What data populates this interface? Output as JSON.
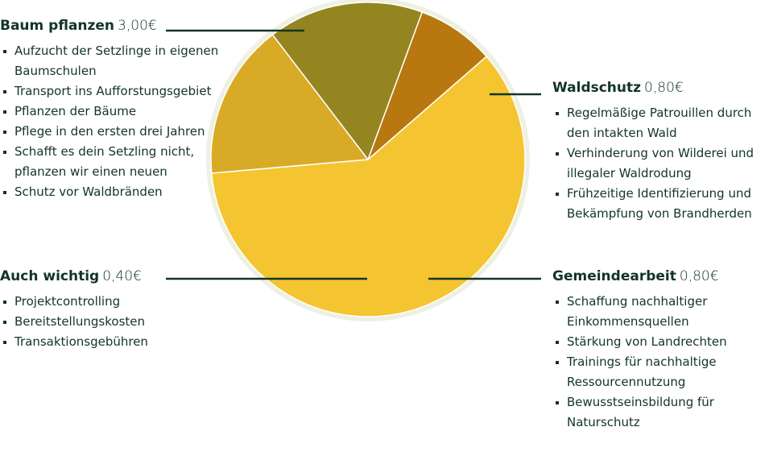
{
  "chart_data": {
    "type": "pie",
    "categories": [
      "Baum pflanzen",
      "Waldschutz",
      "Gemeindearbeit",
      "Auch wichtig"
    ],
    "values": [
      3.0,
      0.8,
      0.8,
      0.4
    ],
    "value_labels": [
      "3,00€",
      "0,80€",
      "0,80€",
      "0,40€"
    ],
    "colors": [
      "#f4c531",
      "#d9aa26",
      "#948521",
      "#b8780f"
    ],
    "bullets": [
      [
        "Aufzucht der Setzlinge in eigenen Baumschulen",
        "Transport ins Aufforstungsgebiet",
        "Pflanzen der Bäume",
        "Pflege in den ersten drei Jahren",
        "Schafft es dein Setzling nicht, pflanzen wir einen neuen",
        "Schutz vor Waldbränden"
      ],
      [
        "Regelmäßige Patrouillen durch den intakten Wald",
        "Verhinderung von Wilderei und illegaler Waldrodung",
        "Frühzeitige Identifizierung und Bekämpfung von Brandherden"
      ],
      [
        "Schaffung nachhaltiger Einkommensquellen",
        "Stärkung von Landrechten",
        "Trainings für nachhaltige Ressourcennutzung",
        "Bewusstseinsbildung für Naturschutz"
      ],
      [
        "Projektcontrolling",
        "Bereitstellungskosten",
        "Transaktionsgebühren"
      ]
    ]
  }
}
